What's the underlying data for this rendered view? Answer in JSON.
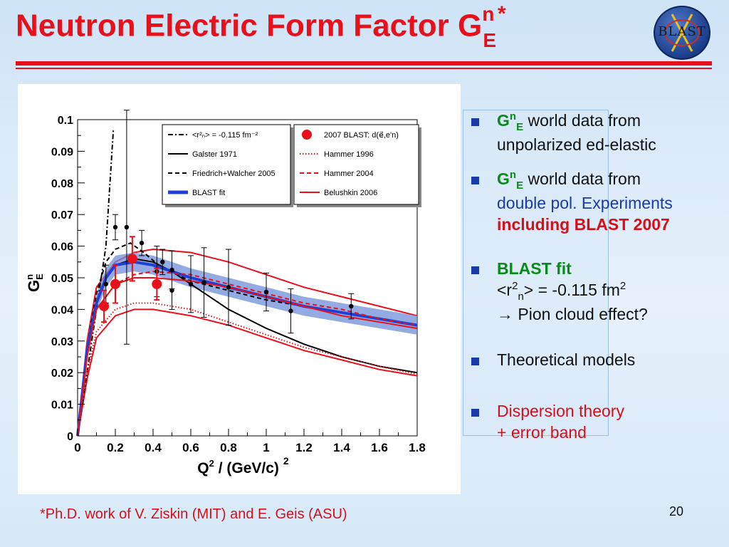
{
  "slide": {
    "title_main": "Neutron Electric Form Factor G",
    "title_sup": "n",
    "title_sub": "E",
    "title_star": "*",
    "logo_text": "BLAST",
    "footnote": "*Ph.D. work of V. Ziskin (MIT) and E. Geis (ASU)",
    "page_number": "20",
    "accent_color": "#e8101a"
  },
  "bullets": [
    {
      "g": "G",
      "g_sup": "n",
      "g_sub": "E",
      "l1": " world data from",
      "l2": "unpolarized ed-elastic"
    },
    {
      "g": "G",
      "g_sup": "n",
      "g_sub": "E",
      "l1": " world data from",
      "l2": "double pol. Experiments",
      "l3": "including BLAST 2007"
    },
    {
      "l1": "BLAST fit",
      "l2a": "<r",
      "l2_sup": "2",
      "l2_sub": "n",
      "l2b": "> = -0.115 fm",
      "l2_sup2": "2",
      "l3": "→ Pion cloud effect?"
    },
    {
      "l1": "Theoretical models"
    },
    {
      "l1": "Dispersion theory",
      "l2": "+ error band"
    }
  ],
  "chart_data": {
    "type": "line",
    "xlabel_main": "Q",
    "xlabel_sup": "2",
    "xlabel_rest": " / (GeV/c)",
    "xlabel_sup2": "2",
    "ylabel_main": "G",
    "ylabel_sup": "n",
    "ylabel_sub": "E",
    "xlim": [
      0,
      1.8
    ],
    "ylim": [
      0,
      0.1
    ],
    "xticks": [
      "0",
      "0.2",
      "0.4",
      "0.6",
      "0.8",
      "1",
      "1.2",
      "1.4",
      "1.6",
      "1.8"
    ],
    "xtick_values": [
      0,
      0.2,
      0.4,
      0.6,
      0.8,
      1.0,
      1.2,
      1.4,
      1.6,
      1.8
    ],
    "yticks": [
      "0",
      "0.01",
      "0.02",
      "0.03",
      "0.04",
      "0.05",
      "0.06",
      "0.07",
      "0.08",
      "0.09",
      "0.1"
    ],
    "ytick_values": [
      0,
      0.01,
      0.02,
      0.03,
      0.04,
      0.05,
      0.06,
      0.07,
      0.08,
      0.09,
      0.1
    ],
    "legend_left": [
      {
        "label": "<r²ₙ> = -0.115 fm⁻²",
        "style": "dashdot",
        "color": "#000000"
      },
      {
        "label": "Galster 1971",
        "style": "solid",
        "color": "#000000"
      },
      {
        "label": "Friedrich+Walcher 2005",
        "style": "dashed",
        "color": "#000000"
      },
      {
        "label": "BLAST fit",
        "style": "thick",
        "color": "#1f3fd6"
      }
    ],
    "legend_right": [
      {
        "label": "2007 BLAST: d(e⃗,e'n)",
        "style": "marker",
        "color": "#e8101a"
      },
      {
        "label": "Hammer 1996",
        "style": "dotted",
        "color": "#e8101a"
      },
      {
        "label": "Hammer 2004",
        "style": "dashed",
        "color": "#e8101a"
      },
      {
        "label": "Belushkin 2006",
        "style": "solid",
        "color": "#e8101a"
      }
    ],
    "series": [
      {
        "name": "<r²ₙ> = -0.115 fm⁻²",
        "style": "dashdot",
        "color": "#000000",
        "points": [
          [
            0,
            0
          ],
          [
            0.05,
            0.02
          ],
          [
            0.1,
            0.04
          ],
          [
            0.15,
            0.06
          ],
          [
            0.19,
            0.097
          ]
        ]
      },
      {
        "name": "Galster 1971",
        "style": "solid",
        "color": "#000000",
        "points": [
          [
            0,
            0
          ],
          [
            0.05,
            0.027
          ],
          [
            0.1,
            0.042
          ],
          [
            0.15,
            0.05
          ],
          [
            0.2,
            0.054
          ],
          [
            0.3,
            0.056
          ],
          [
            0.4,
            0.055
          ],
          [
            0.5,
            0.052
          ],
          [
            0.6,
            0.048
          ],
          [
            0.7,
            0.044
          ],
          [
            0.8,
            0.04
          ],
          [
            1.0,
            0.034
          ],
          [
            1.2,
            0.029
          ],
          [
            1.4,
            0.025
          ],
          [
            1.6,
            0.022
          ],
          [
            1.8,
            0.02
          ]
        ]
      },
      {
        "name": "Friedrich+Walcher 2005",
        "style": "dashed",
        "color": "#000000",
        "points": [
          [
            0,
            0
          ],
          [
            0.05,
            0.028
          ],
          [
            0.1,
            0.045
          ],
          [
            0.15,
            0.055
          ],
          [
            0.2,
            0.059
          ],
          [
            0.28,
            0.061
          ],
          [
            0.35,
            0.058
          ],
          [
            0.45,
            0.053
          ],
          [
            0.6,
            0.049
          ],
          [
            0.8,
            0.046
          ],
          [
            1.0,
            0.043
          ],
          [
            1.2,
            0.041
          ],
          [
            1.4,
            0.039
          ],
          [
            1.6,
            0.037
          ],
          [
            1.8,
            0.035
          ]
        ]
      },
      {
        "name": "BLAST fit",
        "style": "thick",
        "color": "#1f3fd6",
        "points": [
          [
            0,
            0
          ],
          [
            0.05,
            0.027
          ],
          [
            0.1,
            0.042
          ],
          [
            0.15,
            0.05
          ],
          [
            0.2,
            0.054
          ],
          [
            0.3,
            0.055
          ],
          [
            0.4,
            0.054
          ],
          [
            0.5,
            0.052
          ],
          [
            0.6,
            0.05
          ],
          [
            0.8,
            0.047
          ],
          [
            1.0,
            0.044
          ],
          [
            1.2,
            0.041
          ],
          [
            1.4,
            0.039
          ],
          [
            1.6,
            0.037
          ],
          [
            1.8,
            0.035
          ]
        ]
      },
      {
        "name": "Hammer 1996",
        "style": "dotted",
        "color": "#e8101a",
        "points": [
          [
            0,
            0
          ],
          [
            0.05,
            0.02
          ],
          [
            0.1,
            0.033
          ],
          [
            0.2,
            0.04
          ],
          [
            0.3,
            0.042
          ],
          [
            0.4,
            0.042
          ],
          [
            0.6,
            0.04
          ],
          [
            0.8,
            0.036
          ],
          [
            1.0,
            0.032
          ],
          [
            1.2,
            0.028
          ],
          [
            1.4,
            0.025
          ],
          [
            1.6,
            0.022
          ],
          [
            1.8,
            0.0195
          ]
        ]
      },
      {
        "name": "Hammer 2004",
        "style": "dashed",
        "color": "#e8101a",
        "points": [
          [
            0,
            0
          ],
          [
            0.05,
            0.025
          ],
          [
            0.1,
            0.04
          ],
          [
            0.2,
            0.048
          ],
          [
            0.3,
            0.051
          ],
          [
            0.4,
            0.052
          ],
          [
            0.6,
            0.051
          ],
          [
            0.8,
            0.048
          ],
          [
            1.0,
            0.045
          ],
          [
            1.2,
            0.042
          ],
          [
            1.4,
            0.04
          ],
          [
            1.6,
            0.037
          ],
          [
            1.8,
            0.035
          ]
        ]
      },
      {
        "name": "Belushkin 2006",
        "style": "solid",
        "color": "#e8101a",
        "points": [
          [
            0,
            0
          ],
          [
            0.05,
            0.025
          ],
          [
            0.1,
            0.04
          ],
          [
            0.2,
            0.048
          ],
          [
            0.3,
            0.05
          ],
          [
            0.4,
            0.05
          ],
          [
            0.6,
            0.049
          ],
          [
            0.8,
            0.047
          ],
          [
            1.0,
            0.044
          ],
          [
            1.2,
            0.041
          ],
          [
            1.4,
            0.038
          ],
          [
            1.6,
            0.036
          ],
          [
            1.8,
            0.034
          ]
        ]
      }
    ],
    "band": {
      "name": "BLAST fit error band",
      "color": "#6f8fd8",
      "half_width": 0.003
    },
    "dispersion_band": {
      "name": "Dispersion theory error band",
      "color": "#e8101a",
      "upper": [
        [
          0,
          0
        ],
        [
          0.05,
          0.03
        ],
        [
          0.1,
          0.047
        ],
        [
          0.2,
          0.055
        ],
        [
          0.3,
          0.058
        ],
        [
          0.4,
          0.059
        ],
        [
          0.6,
          0.058
        ],
        [
          0.8,
          0.055
        ],
        [
          1.0,
          0.051
        ],
        [
          1.2,
          0.047
        ],
        [
          1.4,
          0.044
        ],
        [
          1.6,
          0.041
        ],
        [
          1.8,
          0.038
        ]
      ],
      "lower": [
        [
          0,
          0
        ],
        [
          0.05,
          0.018
        ],
        [
          0.1,
          0.031
        ],
        [
          0.2,
          0.038
        ],
        [
          0.3,
          0.04
        ],
        [
          0.4,
          0.04
        ],
        [
          0.6,
          0.038
        ],
        [
          0.8,
          0.035
        ],
        [
          1.0,
          0.031
        ],
        [
          1.2,
          0.027
        ],
        [
          1.4,
          0.024
        ],
        [
          1.6,
          0.021
        ],
        [
          1.8,
          0.019
        ]
      ]
    },
    "world_data": [
      {
        "x": 0.15,
        "y": 0.048,
        "err": 0.006
      },
      {
        "x": 0.2,
        "y": 0.066,
        "err": 0.004
      },
      {
        "x": 0.26,
        "y": 0.066,
        "err": 0.037
      },
      {
        "x": 0.34,
        "y": 0.061,
        "err": 0.004
      },
      {
        "x": 0.45,
        "y": 0.055,
        "err": 0.004
      },
      {
        "x": 0.5,
        "y": 0.0525,
        "err": 0.006
      },
      {
        "x": 0.42,
        "y": 0.052,
        "err": 0.008
      },
      {
        "x": 0.5,
        "y": 0.046,
        "err": 0.006
      },
      {
        "x": 0.6,
        "y": 0.048,
        "err": 0.009
      },
      {
        "x": 0.67,
        "y": 0.0485,
        "err": 0.011
      },
      {
        "x": 0.8,
        "y": 0.047,
        "err": 0.012
      },
      {
        "x": 1.0,
        "y": 0.0455,
        "err": 0.006
      },
      {
        "x": 1.13,
        "y": 0.0395,
        "err": 0.007
      },
      {
        "x": 1.45,
        "y": 0.041,
        "err": 0.004
      }
    ],
    "blast_2007": [
      {
        "x": 0.14,
        "y": 0.041,
        "err": 0.005
      },
      {
        "x": 0.2,
        "y": 0.048,
        "err": 0.006
      },
      {
        "x": 0.29,
        "y": 0.056,
        "err": 0.007
      },
      {
        "x": 0.42,
        "y": 0.048,
        "err": 0.005
      }
    ]
  }
}
